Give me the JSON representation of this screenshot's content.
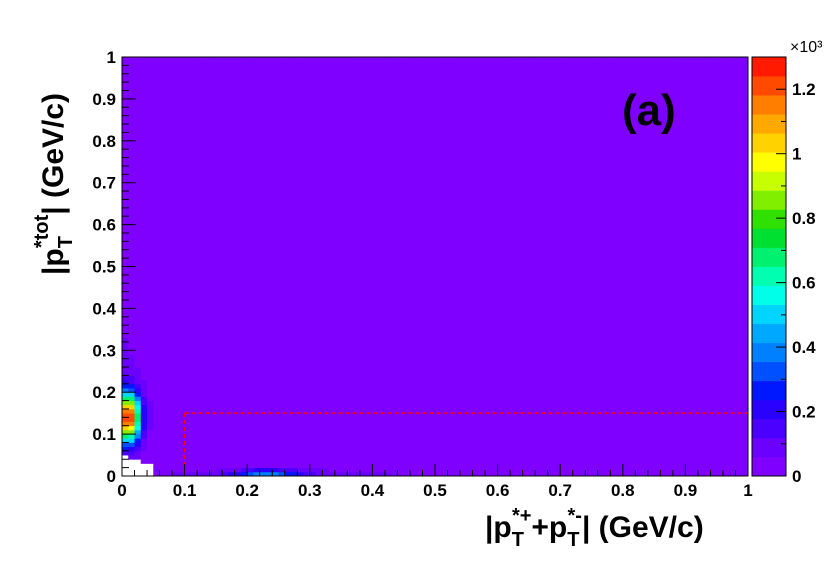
{
  "chart_data": {
    "type": "heatmap",
    "panel_label": "(a)",
    "xlim": [
      0,
      1
    ],
    "ylim": [
      0,
      1
    ],
    "x_ticks": [
      "0",
      "0.1",
      "0.2",
      "0.3",
      "0.4",
      "0.5",
      "0.6",
      "0.7",
      "0.8",
      "0.9",
      "1"
    ],
    "y_ticks": [
      "0",
      "0.1",
      "0.2",
      "0.3",
      "0.4",
      "0.5",
      "0.6",
      "0.7",
      "0.8",
      "0.9",
      "1"
    ],
    "colorbar": {
      "range": [
        0,
        1300
      ],
      "exponent_label": "×10³",
      "tick_labels": [
        "0",
        "0.2",
        "0.4",
        "0.6",
        "0.8",
        "1",
        "1.2"
      ],
      "tick_values": [
        0,
        0.2,
        0.4,
        0.6,
        0.8,
        1.0,
        1.2
      ],
      "colors": [
        "#7f00ff",
        "#6a00ff",
        "#4b00ff",
        "#2a00ff",
        "#0018ff",
        "#0050ff",
        "#0080ff",
        "#00a8ff",
        "#00d4ff",
        "#00ffe8",
        "#00ffb0",
        "#00f070",
        "#00e030",
        "#30e000",
        "#80f000",
        "#c8ff00",
        "#ffff00",
        "#ffd200",
        "#ffa800",
        "#ff7e00",
        "#ff4a00",
        "#ff1a00"
      ]
    },
    "selection_cut": {
      "x_min": 0.1,
      "y_max": 0.15,
      "color": "#ff0000",
      "style": "dashed"
    }
  },
  "labels": {
    "x_axis": {
      "part1": "|p",
      "sub1": "T",
      "sup1": "*+",
      "part2": "+p",
      "sub2": "T",
      "sup2": "*-",
      "part3": "| (GeV/c)"
    },
    "y_axis": {
      "part1": "|p",
      "sub": "T",
      "sup": "*tot",
      "part2": "| (GeV/c)"
    }
  }
}
